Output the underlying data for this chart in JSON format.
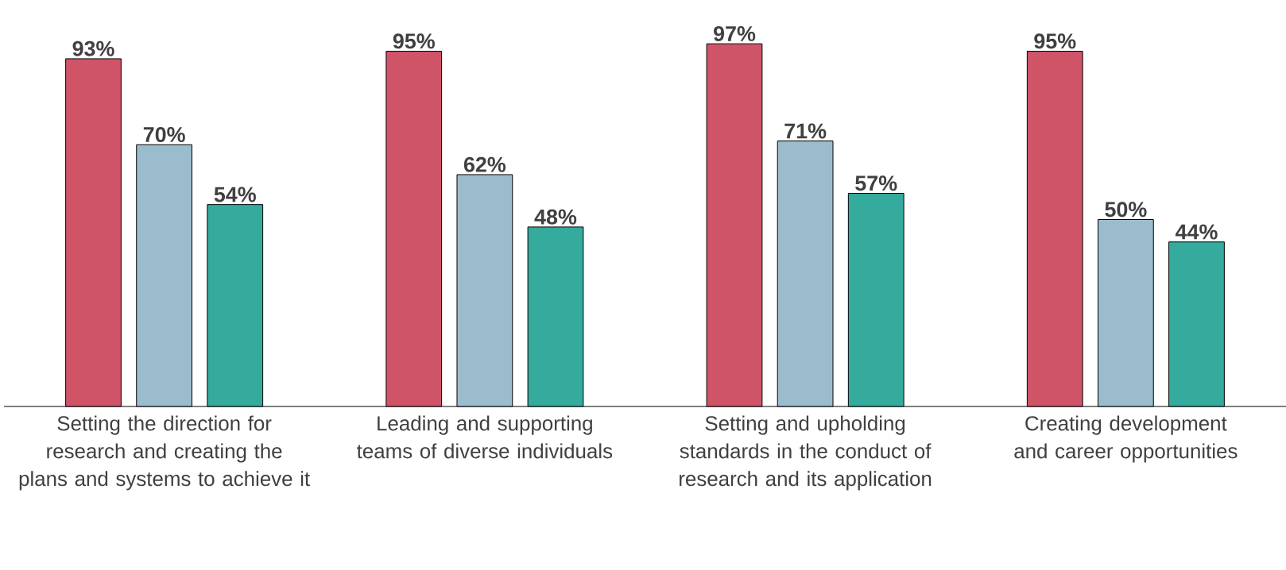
{
  "chart_data": {
    "type": "bar",
    "categories": [
      "Setting the direction for research and creating the plans and systems to achieve it",
      "Leading and supporting teams of diverse individuals",
      "Setting and upholding standards in the conduct of research and its application",
      "Creating development and career opportunities"
    ],
    "series": [
      {
        "color": "#d05468",
        "values": [
          93,
          95,
          97,
          95
        ],
        "value_labels": [
          "93%",
          "95%",
          "97%",
          "95%"
        ]
      },
      {
        "color": "#9bbccc",
        "values": [
          70,
          62,
          71,
          50
        ],
        "value_labels": [
          "70%",
          "62%",
          "71%",
          "50%"
        ]
      },
      {
        "color": "#35ab9e",
        "values": [
          54,
          48,
          57,
          44
        ],
        "value_labels": [
          "54%",
          "48%",
          "57%",
          "44%"
        ]
      }
    ]
  }
}
